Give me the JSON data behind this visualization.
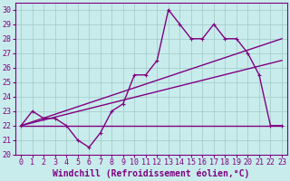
{
  "title": "",
  "xlabel": "Windchill (Refroidissement éolien,°C)",
  "ylabel": "",
  "bg_color": "#c8ecec",
  "line_color": "#800080",
  "grid_color": "#a0c8c8",
  "xlim": [
    -0.5,
    23.5
  ],
  "ylim": [
    20,
    30.5
  ],
  "yticks": [
    20,
    21,
    22,
    23,
    24,
    25,
    26,
    27,
    28,
    29,
    30
  ],
  "xticks": [
    0,
    1,
    2,
    3,
    4,
    5,
    6,
    7,
    8,
    9,
    10,
    11,
    12,
    13,
    14,
    15,
    16,
    17,
    18,
    19,
    20,
    21,
    22,
    23
  ],
  "series": [
    {
      "x": [
        0,
        1,
        2,
        3,
        4,
        5,
        6,
        7,
        8,
        9,
        10,
        11,
        12,
        13,
        14,
        15,
        16,
        17,
        18,
        19,
        20,
        21,
        22,
        23
      ],
      "y": [
        22,
        23,
        22.5,
        22.5,
        22,
        21,
        20.5,
        21.5,
        23,
        23.5,
        25.5,
        25.5,
        26.5,
        30,
        29,
        28,
        28,
        29,
        28,
        28,
        27,
        25.5,
        22,
        22
      ],
      "color": "#800080",
      "lw": 1.0,
      "marker": "+"
    },
    {
      "x": [
        0,
        23
      ],
      "y": [
        22,
        22
      ],
      "color": "#800080",
      "lw": 1.0,
      "marker": null
    },
    {
      "x": [
        0,
        23
      ],
      "y": [
        22,
        26.5
      ],
      "color": "#800080",
      "lw": 1.0,
      "marker": null
    },
    {
      "x": [
        0,
        23
      ],
      "y": [
        22,
        28
      ],
      "color": "#800080",
      "lw": 1.0,
      "marker": null
    }
  ],
  "font_color": "#800080",
  "tick_fontsize": 6,
  "xlabel_fontsize": 7
}
